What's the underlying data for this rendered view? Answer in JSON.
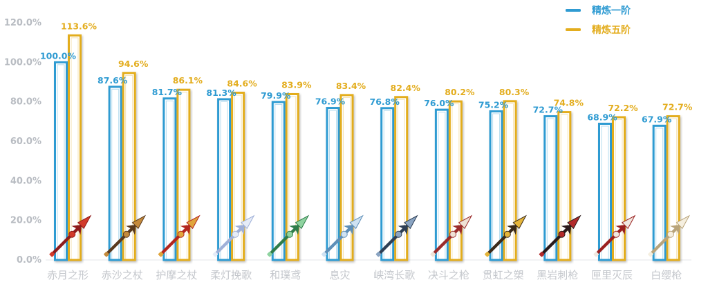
{
  "chart_data": {
    "type": "bar",
    "categories": [
      "赤月之形",
      "赤沙之杖",
      "护摩之杖",
      "柔灯挽歌",
      "和璞鸢",
      "息灾",
      "峡湾长歌",
      "决斗之枪",
      "贯虹之槊",
      "黑岩刺枪",
      "匣里灭辰",
      "白缨枪"
    ],
    "series": [
      {
        "name": "精炼一阶",
        "values": [
          100.0,
          87.6,
          81.7,
          81.3,
          79.9,
          76.9,
          76.8,
          76.0,
          75.2,
          72.7,
          68.9,
          67.9
        ],
        "labels": [
          "100.0%",
          "87.6%",
          "81.7%",
          "81.3%",
          "79.9%",
          "76.9%",
          "76.8%",
          "76.0%",
          "75.2%",
          "72.7%",
          "68.9%",
          "67.9%"
        ],
        "color": "#2f9bd2"
      },
      {
        "name": "精炼五阶",
        "values": [
          113.6,
          94.6,
          86.1,
          84.6,
          83.9,
          83.4,
          82.4,
          80.2,
          80.3,
          74.8,
          72.2,
          72.7
        ],
        "labels": [
          "113.6%",
          "94.6%",
          "86.1%",
          "84.6%",
          "83.9%",
          "83.4%",
          "82.4%",
          "80.2%",
          "80.3%",
          "74.8%",
          "72.2%",
          "72.7%"
        ],
        "color": "#e3ad1e"
      }
    ],
    "ylim": [
      0,
      120
    ],
    "yticks": [
      0,
      20,
      40,
      60,
      80,
      100,
      120
    ],
    "ytick_labels": [
      "0.0%",
      "20.0%",
      "40.0%",
      "60.0%",
      "80.0%",
      "100.0%",
      "120.0%"
    ],
    "legend_position": "top-right",
    "grid": false,
    "icons": [
      "polearm-red-icon",
      "polearm-bronze-icon",
      "polearm-red-gold-icon",
      "polearm-white-blue-icon",
      "polearm-jade-icon",
      "polearm-blue-icon",
      "polearm-dark-blue-icon",
      "polearm-red-white-icon",
      "polearm-gold-icon",
      "polearm-black-red-icon",
      "polearm-white-red-icon",
      "polearm-white-gold-icon"
    ]
  }
}
